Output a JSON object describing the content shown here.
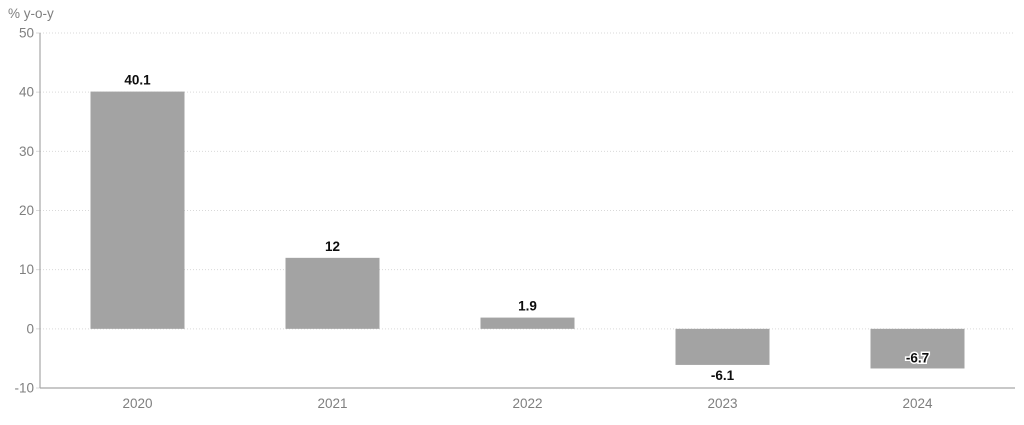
{
  "chart_data": {
    "type": "bar",
    "title": "% y-o-y",
    "categories": [
      "2020",
      "2021",
      "2022",
      "2023",
      "2024"
    ],
    "values": [
      40.1,
      12,
      1.9,
      -6.1,
      -6.7
    ],
    "data_labels": [
      {
        "text": "40.1",
        "placement": "outside"
      },
      {
        "text": "12",
        "placement": "outside"
      },
      {
        "text": "1.9",
        "placement": "outside"
      },
      {
        "text": "-6.1",
        "placement": "outside"
      },
      {
        "text": "-6.7",
        "placement": "inside"
      }
    ],
    "xlabel": "",
    "ylabel": "% y-o-y",
    "ylim": [
      -10,
      50
    ],
    "yticks": [
      50,
      40,
      30,
      20,
      10,
      0,
      -10
    ],
    "ytick_labels": [
      "50",
      "40",
      "30",
      "20",
      "10",
      "0",
      "-10"
    ],
    "grid": "horizontal-dotted",
    "legend": "none",
    "colors": {
      "bar": "#a3a3a3",
      "axis_line": "#a6a6a6",
      "gridline": "#d9d9d9",
      "tick_text": "#7f7f7f",
      "data_label_text": "#0d0d0d",
      "inside_label_halo": "#ffffff",
      "background": "#ffffff"
    }
  }
}
